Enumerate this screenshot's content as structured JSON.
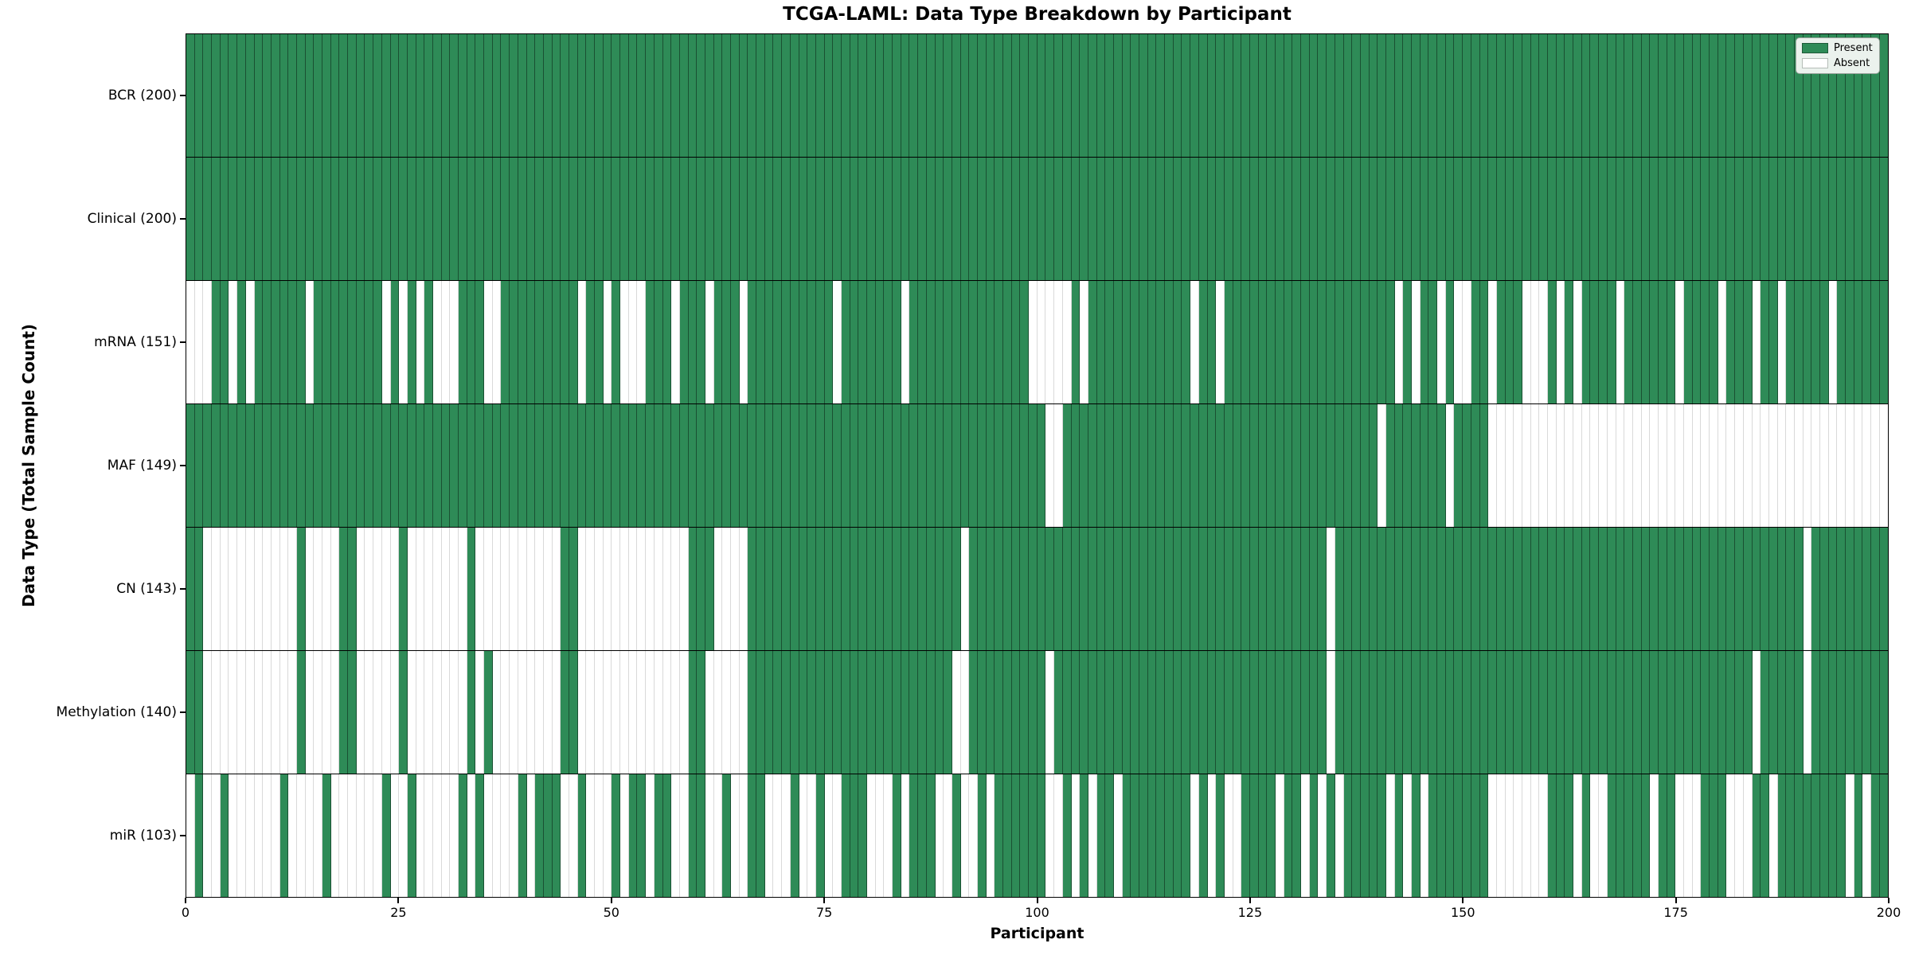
{
  "chart_data": {
    "type": "heatmap",
    "title": "TCGA-LAML: Data Type Breakdown by Participant",
    "xlabel": "Participant",
    "ylabel": "Data Type (Total Sample Count)",
    "x_range": [
      0,
      200
    ],
    "n_participants": 200,
    "x_ticks": [
      0,
      25,
      50,
      75,
      100,
      125,
      150,
      175,
      200
    ],
    "grid": false,
    "legend_position": "upper right",
    "legend_entries": [
      {
        "label": "Present",
        "color": "#2e8b57"
      },
      {
        "label": "Absent",
        "color": "#ffffff"
      }
    ],
    "colors": {
      "present": "#2e8b57",
      "absent": "#ffffff"
    },
    "cell_states": {
      "present": 1,
      "absent": 0
    },
    "rows": [
      {
        "label": "BCR (200)",
        "data_type": "BCR",
        "present_count": 200,
        "absent_indices": []
      },
      {
        "label": "Clinical (200)",
        "data_type": "Clinical",
        "present_count": 200,
        "absent_indices": []
      },
      {
        "label": "mRNA (151)",
        "data_type": "mRNA",
        "present_count": 151,
        "absent_indices": [
          0,
          1,
          2,
          5,
          7,
          14,
          23,
          25,
          27,
          29,
          30,
          31,
          35,
          36,
          46,
          49,
          51,
          52,
          53,
          57,
          61,
          65,
          76,
          84,
          99,
          100,
          101,
          102,
          103,
          105,
          118,
          121,
          142,
          144,
          147,
          149,
          150,
          153,
          157,
          158,
          159,
          161,
          163,
          168,
          175,
          180,
          184,
          187,
          193
        ]
      },
      {
        "label": "MAF (149)",
        "data_type": "MAF",
        "present_count": 149,
        "absent_indices": [
          101,
          102,
          140,
          148,
          153,
          154,
          155,
          156,
          157,
          158,
          159,
          160,
          161,
          162,
          163,
          164,
          165,
          166,
          167,
          168,
          169,
          170,
          171,
          172,
          173,
          174,
          175,
          176,
          177,
          178,
          179,
          180,
          181,
          182,
          183,
          184,
          185,
          186,
          187,
          188,
          189,
          190,
          191,
          192,
          193,
          194,
          195,
          196,
          197,
          198,
          199
        ]
      },
      {
        "label": "CN (143)",
        "data_type": "CN",
        "present_count": 143,
        "absent_indices": [
          2,
          3,
          4,
          5,
          6,
          7,
          8,
          9,
          10,
          11,
          12,
          14,
          15,
          16,
          17,
          20,
          21,
          22,
          23,
          24,
          26,
          27,
          28,
          29,
          30,
          31,
          32,
          34,
          35,
          36,
          37,
          38,
          39,
          40,
          41,
          42,
          43,
          46,
          47,
          48,
          49,
          50,
          51,
          52,
          53,
          54,
          55,
          56,
          57,
          58,
          62,
          63,
          64,
          65,
          91,
          134,
          190
        ]
      },
      {
        "label": "Methylation (140)",
        "data_type": "Methylation",
        "present_count": 140,
        "absent_indices": [
          2,
          3,
          4,
          5,
          6,
          7,
          8,
          9,
          10,
          11,
          12,
          14,
          15,
          16,
          17,
          20,
          21,
          22,
          23,
          24,
          26,
          27,
          28,
          29,
          30,
          31,
          32,
          34,
          36,
          37,
          38,
          39,
          40,
          41,
          42,
          43,
          46,
          47,
          48,
          49,
          50,
          51,
          52,
          53,
          54,
          55,
          56,
          57,
          58,
          61,
          62,
          63,
          64,
          65,
          90,
          91,
          101,
          134,
          184,
          190
        ]
      },
      {
        "label": "miR (103)",
        "data_type": "miR",
        "present_count": 103,
        "absent_indices": [
          0,
          2,
          3,
          5,
          6,
          7,
          8,
          9,
          10,
          12,
          13,
          14,
          15,
          17,
          18,
          19,
          20,
          21,
          22,
          24,
          25,
          27,
          28,
          29,
          30,
          31,
          33,
          35,
          36,
          37,
          38,
          40,
          44,
          45,
          47,
          48,
          49,
          51,
          54,
          57,
          58,
          61,
          62,
          64,
          65,
          68,
          69,
          70,
          72,
          73,
          75,
          76,
          80,
          81,
          82,
          84,
          88,
          89,
          91,
          92,
          94,
          101,
          102,
          104,
          106,
          109,
          118,
          120,
          122,
          123,
          128,
          131,
          133,
          135,
          141,
          143,
          145,
          153,
          154,
          155,
          156,
          157,
          158,
          159,
          163,
          165,
          166,
          172,
          175,
          176,
          177,
          181,
          182,
          183,
          186,
          195,
          197
        ]
      }
    ]
  }
}
